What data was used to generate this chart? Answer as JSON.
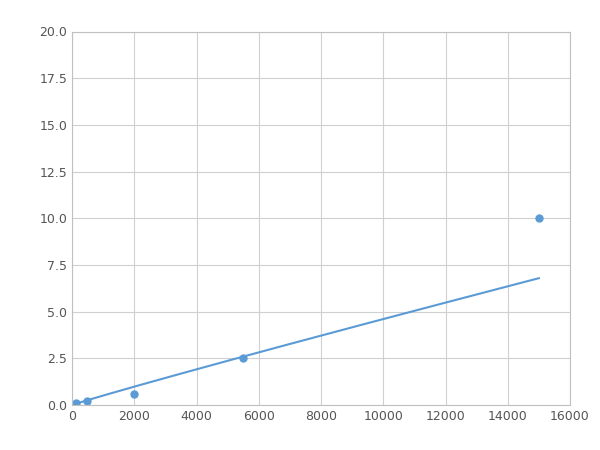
{
  "x_points": [
    123,
    493,
    2000,
    5500,
    15000
  ],
  "y_points": [
    0.1,
    0.2,
    0.6,
    2.5,
    10.0
  ],
  "line_color": "#5B9BD5",
  "marker_color": "#5B9BD5",
  "xlim": [
    0,
    16000
  ],
  "ylim": [
    0,
    20.0
  ],
  "xticks": [
    0,
    2000,
    4000,
    6000,
    8000,
    10000,
    12000,
    14000,
    16000
  ],
  "yticks": [
    0.0,
    2.5,
    5.0,
    7.5,
    10.0,
    12.5,
    15.0,
    17.5,
    20.0
  ],
  "grid": true,
  "background_color": "#ffffff",
  "marker_size": 5,
  "line_width": 1.5,
  "figure_size": [
    6.0,
    4.5
  ],
  "dpi": 100
}
